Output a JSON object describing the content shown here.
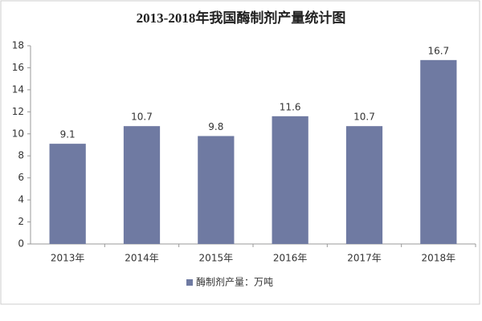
{
  "chart_data": {
    "type": "bar",
    "title": "2013-2018年我国酶制剂产量统计图",
    "categories": [
      "2013年",
      "2014年",
      "2015年",
      "2016年",
      "2017年",
      "2018年"
    ],
    "series": [
      {
        "name": "酶制剂产量：万吨",
        "color": "#6f7aa2",
        "values": [
          9.1,
          10.7,
          9.8,
          11.6,
          10.7,
          16.7
        ]
      }
    ],
    "ylim": [
      0,
      18
    ],
    "yticks": [
      0,
      2,
      4,
      6,
      8,
      10,
      12,
      14,
      16,
      18
    ],
    "grid": false,
    "legend": "bottom"
  }
}
